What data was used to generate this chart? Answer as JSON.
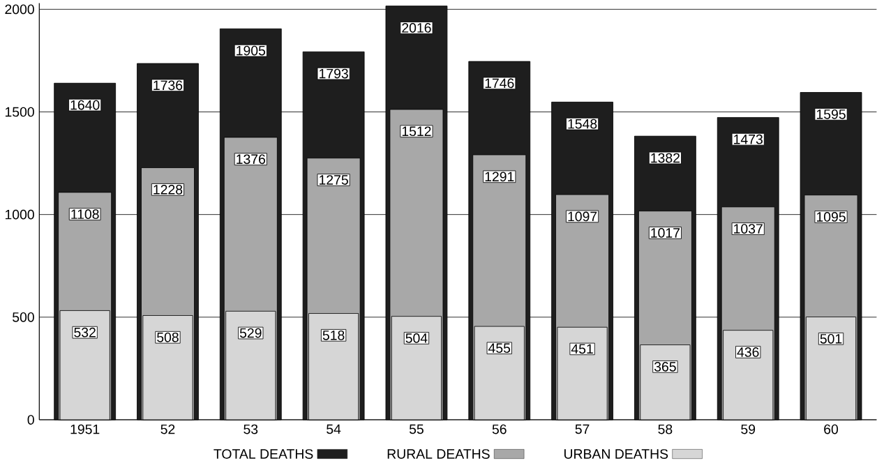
{
  "chart_data": {
    "type": "bar",
    "categories": [
      "1951",
      "52",
      "53",
      "54",
      "55",
      "56",
      "57",
      "58",
      "59",
      "60"
    ],
    "series": [
      {
        "name": "TOTAL DEATHS",
        "color": "#1e1e1e",
        "values": [
          1640,
          1736,
          1905,
          1793,
          2016,
          1746,
          1548,
          1382,
          1473,
          1595
        ]
      },
      {
        "name": "RURAL DEATHS",
        "color": "#a8a8a8",
        "values": [
          1108,
          1228,
          1376,
          1275,
          1512,
          1291,
          1097,
          1017,
          1037,
          1095
        ]
      },
      {
        "name": "URBAN DEATHS",
        "color": "#d6d6d6",
        "values": [
          532,
          508,
          529,
          518,
          504,
          455,
          451,
          365,
          436,
          501
        ]
      }
    ],
    "ylim": [
      0,
      2030
    ],
    "yticks": [
      0,
      500,
      1000,
      1500,
      2000
    ],
    "grid": "y",
    "legend": "bottom",
    "data_labels": true
  }
}
